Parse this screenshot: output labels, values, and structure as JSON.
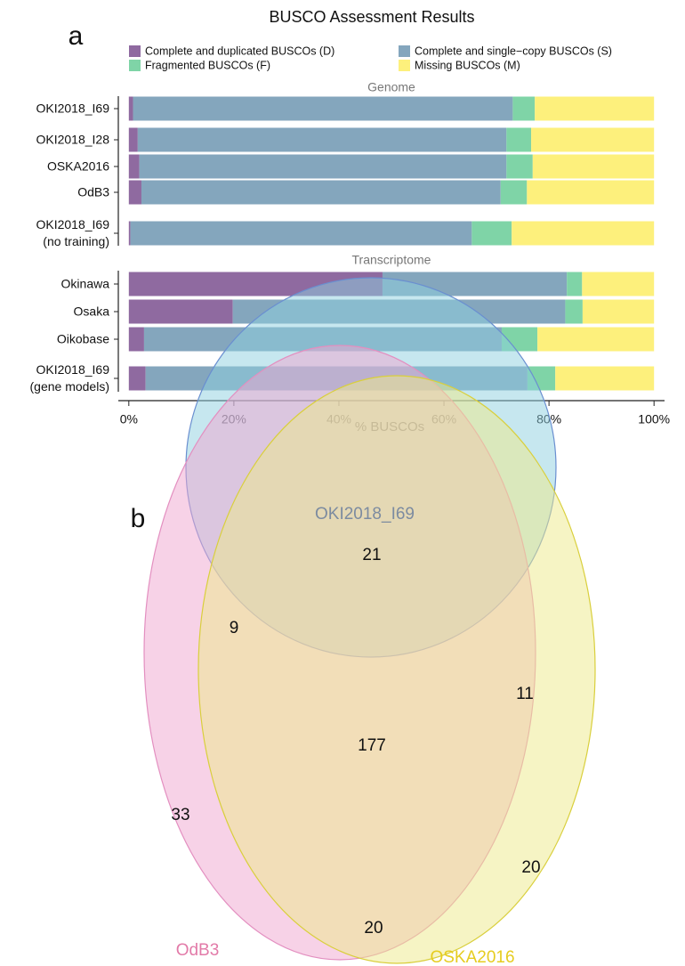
{
  "chart_data": [
    {
      "type": "stacked-barh",
      "panel_label": "a",
      "title": "BUSCO Assessment Results",
      "xlabel": "% BUSCOs",
      "group_labels": [
        "Genome",
        "Transcriptome"
      ],
      "categories": [
        "OKI2018_I69",
        "OKI2018_I28",
        "OSKA2016",
        "OdB3",
        "OKI2018_I69\n(no training)",
        "Okinawa",
        "Osaka",
        "Oikobase",
        "OKI2018_I69\n(gene models)"
      ],
      "series": [
        {
          "name": "Complete and duplicated BUSCOs (D)",
          "color": "#8f6aa0",
          "values": [
            0.8,
            1.7,
            2.0,
            2.4,
            0.3,
            48.3,
            19.8,
            2.9,
            3.2
          ]
        },
        {
          "name": "Complete and single−copy BUSCOs (S)",
          "color": "#84a6bd",
          "values": [
            72.3,
            70.2,
            69.9,
            68.4,
            65.0,
            35.1,
            63.3,
            68.1,
            72.7
          ]
        },
        {
          "name": "Fragmented BUSCOs (F)",
          "color": "#7fd4a7",
          "values": [
            4.2,
            4.7,
            5.0,
            5.0,
            7.6,
            2.9,
            3.3,
            6.8,
            5.3
          ]
        },
        {
          "name": "Missing BUSCOs (M)",
          "color": "#fdf07c",
          "values": [
            22.7,
            23.4,
            23.1,
            24.2,
            27.1,
            13.7,
            13.6,
            22.2,
            18.8
          ]
        }
      ],
      "xlim": [
        -2,
        102
      ],
      "xticks": [
        {
          "value": 0,
          "label": "0%"
        },
        {
          "value": 20,
          "label": "20%"
        },
        {
          "value": 40,
          "label": "40%"
        },
        {
          "value": 60,
          "label": "60%"
        },
        {
          "value": 80,
          "label": "80%"
        },
        {
          "value": 100,
          "label": "100%"
        }
      ],
      "legend": "top",
      "grid": false
    },
    {
      "type": "venn",
      "panel_label": "b",
      "sets": [
        {
          "name": "OKI2018_I69",
          "color": "#8ecfe0"
        },
        {
          "name": "OdB3",
          "color": "#f0a6cf"
        },
        {
          "name": "OSKA2016",
          "color": "#eee98a"
        }
      ],
      "values": [
        21,
        9,
        11,
        177,
        33,
        20,
        20
      ]
    }
  ]
}
